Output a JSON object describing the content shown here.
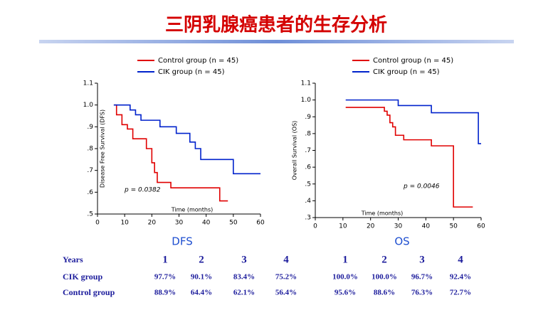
{
  "title": "三阴乳腺癌患者的生存分析",
  "chart_data": [
    {
      "type": "step",
      "label": "DFS",
      "y_label": "Disease Free Survival (DFS)",
      "x_label": "Time (months)",
      "annotation": "p = 0.0382",
      "xlim": [
        0,
        60
      ],
      "xticks": [
        0,
        10,
        20,
        30,
        40,
        50,
        60
      ],
      "ylim": [
        0.5,
        1.1
      ],
      "yticks": [
        1.1,
        {
          "value": 1.0,
          "label": "1.0"
        },
        {
          "value": 0.9,
          "label": ".9"
        },
        {
          "value": 0.8,
          "label": ".8"
        },
        {
          "value": 0.7,
          "label": ".7"
        },
        {
          "value": 0.6,
          "label": ".6"
        },
        {
          "value": 0.5,
          "label": ".5"
        }
      ],
      "grid": false,
      "series": [
        {
          "name": "Control group (n = 45)",
          "color": "#e00000",
          "x": [
            6,
            7,
            9,
            11,
            13,
            18,
            20,
            21,
            22,
            27,
            45,
            48
          ],
          "values": [
            1.0,
            0.955,
            0.91,
            0.89,
            0.845,
            0.8,
            0.735,
            0.69,
            0.645,
            0.62,
            0.56,
            0.56
          ]
        },
        {
          "name": "CIK group (n = 45)",
          "color": "#0022cc",
          "x": [
            6,
            12,
            14,
            16,
            23,
            29,
            34,
            36,
            38,
            50,
            60
          ],
          "values": [
            1.0,
            0.977,
            0.955,
            0.93,
            0.9,
            0.87,
            0.83,
            0.8,
            0.75,
            0.685,
            0.685
          ]
        }
      ]
    },
    {
      "type": "step",
      "label": "OS",
      "y_label": "Overall Survival (OS)",
      "x_label": "Time (months)",
      "annotation": "p = 0.0046",
      "xlim": [
        0,
        60
      ],
      "xticks": [
        0,
        10,
        20,
        30,
        40,
        50,
        60
      ],
      "ylim": [
        0.3,
        1.1
      ],
      "yticks": [
        1.1,
        {
          "value": 1.0,
          "label": "1.0"
        },
        {
          "value": 0.9,
          "label": ".9"
        },
        {
          "value": 0.8,
          "label": ".8"
        },
        {
          "value": 0.7,
          "label": ".7"
        },
        {
          "value": 0.6,
          "label": ".6"
        },
        {
          "value": 0.5,
          "label": ".5"
        },
        {
          "value": 0.4,
          "label": ".4"
        },
        {
          "value": 0.3,
          "label": ".3"
        }
      ],
      "grid": false,
      "series": [
        {
          "name": "Control group (n = 45)",
          "color": "#e00000",
          "x": [
            11,
            24,
            25,
            26,
            27,
            28,
            29,
            32,
            42,
            50,
            57
          ],
          "values": [
            0.956,
            0.956,
            0.933,
            0.91,
            0.865,
            0.84,
            0.79,
            0.763,
            0.727,
            0.363,
            0.363
          ]
        },
        {
          "name": "CIK group (n = 45)",
          "color": "#0022cc",
          "x": [
            11,
            30,
            42,
            59,
            60
          ],
          "values": [
            1.0,
            0.967,
            0.924,
            0.74,
            0.74
          ]
        }
      ]
    }
  ],
  "table": {
    "header": [
      "Years",
      "1",
      "2",
      "3",
      "4",
      "1",
      "2",
      "3",
      "4"
    ],
    "rows": [
      [
        "CIK group",
        "97.7%",
        "90.1%",
        "83.4%",
        "75.2%",
        "100.0%",
        "100.0%",
        "96.7%",
        "92.4%"
      ],
      [
        "Control group",
        "88.9%",
        "64.4%",
        "62.1%",
        "56.4%",
        "95.6%",
        "88.6%",
        "76.3%",
        "72.7%"
      ]
    ]
  }
}
